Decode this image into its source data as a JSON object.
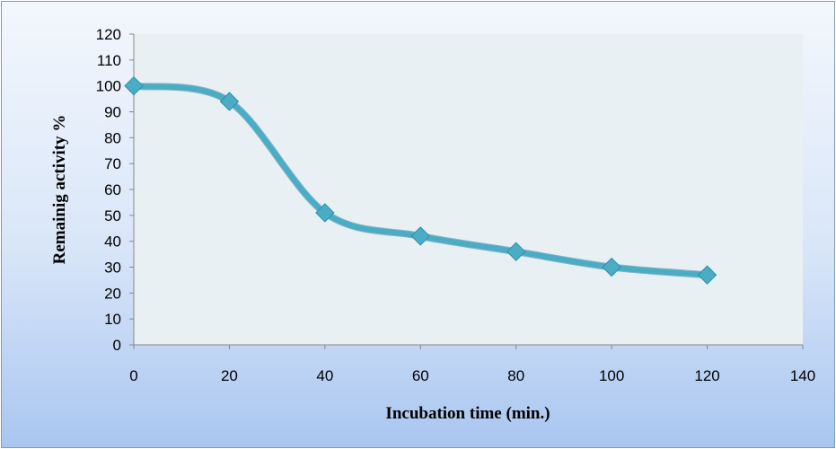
{
  "chart_data": {
    "type": "line",
    "title": "",
    "xlabel": "Incubation time (min.)",
    "ylabel": "Remainig activity %",
    "x": [
      0,
      20,
      40,
      60,
      80,
      100,
      120
    ],
    "series": [
      {
        "values": [
          100,
          94,
          51,
          42,
          36,
          30,
          27
        ],
        "color": "#4bacc6"
      }
    ],
    "xlim": [
      0,
      140
    ],
    "ylim": [
      0,
      120
    ],
    "xticks": [
      "0",
      "20",
      "40",
      "60",
      "80",
      "100",
      "120",
      "140"
    ],
    "yticks": [
      "0",
      "10",
      "20",
      "30",
      "40",
      "50",
      "60",
      "70",
      "80",
      "90",
      "100",
      "110",
      "120"
    ],
    "grid": false,
    "smooth": true,
    "marker": "diamond",
    "plot_background": "#e8f0f4"
  }
}
